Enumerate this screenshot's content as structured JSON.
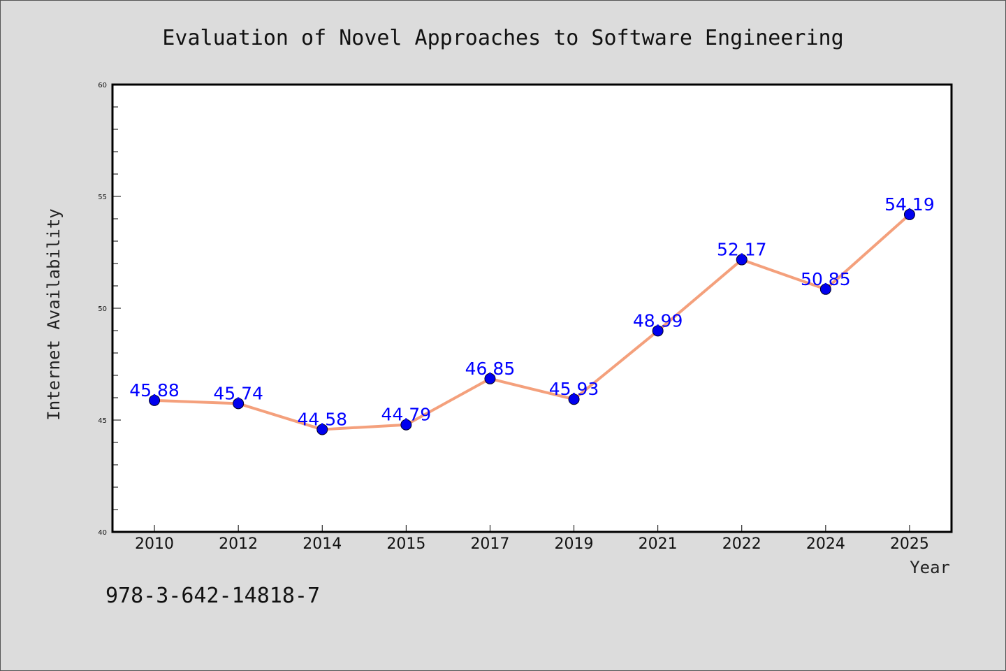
{
  "chart_data": {
    "type": "line",
    "title": "Evaluation of Novel Approaches to Software Engineering",
    "xlabel": "Year",
    "ylabel": "Internet Availability",
    "categories": [
      "2010",
      "2012",
      "2014",
      "2015",
      "2017",
      "2019",
      "2021",
      "2022",
      "2024",
      "2025"
    ],
    "series": [
      {
        "values": [
          45.88,
          45.74,
          44.58,
          44.79,
          46.85,
          45.93,
          48.99,
          52.17,
          50.85,
          54.19
        ]
      }
    ],
    "data_labels": [
      "45.88",
      "45.74",
      "44.58",
      "44.79",
      "46.85",
      "45.93",
      "48.99",
      "52.17",
      "50.85",
      "54.19"
    ],
    "ylim": [
      40,
      60
    ],
    "yticks": [
      40,
      45,
      50,
      55,
      60
    ],
    "ytick_labels": [
      "40",
      "45",
      "50",
      "55",
      "60"
    ],
    "grid": false,
    "colors": {
      "line": "#f4a07c",
      "marker": "#0000ee",
      "data_label": "#0000ff",
      "background": "#dcdcdc",
      "plot_background": "#ffffff"
    }
  },
  "footnote": "978-3-642-14818-7"
}
